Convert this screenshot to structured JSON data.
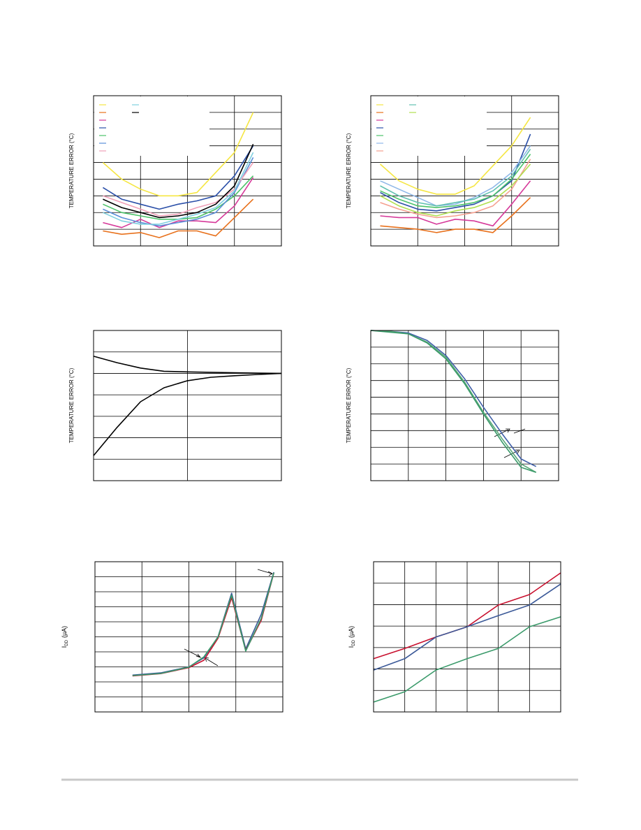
{
  "chart_data": [
    {
      "type": "line",
      "ylabel": "TEMPERATURE ERROR (°C)",
      "legend": "upper left",
      "xlim": [
        0,
        4
      ],
      "xticks": [
        1,
        2,
        3
      ],
      "ylim": [
        0,
        9
      ],
      "yticks": [
        1,
        2,
        3,
        4,
        5,
        6,
        7,
        8
      ],
      "x": [
        0.2,
        0.6,
        1,
        1.4,
        1.8,
        2.2,
        2.6,
        3,
        3.4
      ],
      "series": [
        {
          "color": "#f5e642",
          "values": [
            5.0,
            4.0,
            3.4,
            3.0,
            3.0,
            3.2,
            4.4,
            5.6,
            8.0
          ]
        },
        {
          "color": "#e8711c",
          "values": [
            0.9,
            0.7,
            0.8,
            0.5,
            0.9,
            0.9,
            0.6,
            1.7,
            2.8
          ]
        },
        {
          "color": "#d63a9a",
          "values": [
            1.4,
            1.1,
            1.6,
            1.1,
            1.5,
            1.5,
            1.4,
            2.4,
            4.1
          ]
        },
        {
          "color": "#2a4fa8",
          "values": [
            3.5,
            2.8,
            2.5,
            2.2,
            2.5,
            2.7,
            3.0,
            4.2,
            6.0
          ]
        },
        {
          "color": "#4cc36a",
          "values": [
            2.5,
            2.0,
            1.8,
            1.6,
            1.6,
            1.7,
            2.2,
            3.0,
            4.2
          ]
        },
        {
          "color": "#5b8fd8",
          "values": [
            2.2,
            1.7,
            1.4,
            1.2,
            1.4,
            1.6,
            2.0,
            3.2,
            5.3
          ]
        },
        {
          "color": "#f0a0b8",
          "values": [
            3.0,
            2.6,
            2.2,
            1.8,
            1.9,
            2.3,
            2.6,
            3.4,
            5.0
          ]
        },
        {
          "color": "#7fd0e0",
          "values": [
            2.0,
            1.5,
            1.3,
            1.3,
            1.6,
            1.9,
            2.3,
            3.3,
            5.6
          ]
        },
        {
          "color": "#000000",
          "values": [
            2.8,
            2.3,
            2.0,
            1.7,
            1.8,
            2.0,
            2.5,
            3.6,
            6.1
          ]
        }
      ]
    },
    {
      "type": "line",
      "ylabel": "TEMPERATURE ERROR (°C)",
      "legend": "upper left",
      "xlim": [
        0,
        4
      ],
      "xticks": [
        1,
        2,
        3
      ],
      "ylim": [
        0,
        9
      ],
      "yticks": [
        1,
        2,
        3,
        4,
        5,
        6,
        7,
        8
      ],
      "x": [
        0.2,
        0.6,
        1,
        1.4,
        1.8,
        2.2,
        2.6,
        3,
        3.4
      ],
      "series": [
        {
          "color": "#f5e642",
          "values": [
            4.9,
            3.9,
            3.4,
            3.1,
            3.1,
            3.6,
            4.8,
            6.0,
            7.7
          ]
        },
        {
          "color": "#e8711c",
          "values": [
            1.2,
            1.1,
            1.0,
            0.8,
            1.0,
            1.0,
            0.8,
            1.8,
            2.9
          ]
        },
        {
          "color": "#d63a9a",
          "values": [
            1.8,
            1.7,
            1.7,
            1.3,
            1.6,
            1.5,
            1.2,
            2.5,
            3.9
          ]
        },
        {
          "color": "#2a4fa8",
          "values": [
            3.2,
            2.6,
            2.2,
            2.1,
            2.3,
            2.5,
            3.0,
            3.9,
            6.7
          ]
        },
        {
          "color": "#4cc36a",
          "values": [
            3.3,
            2.8,
            2.4,
            2.3,
            2.4,
            2.6,
            3.0,
            4.0,
            5.5
          ]
        },
        {
          "color": "#8fb8e8",
          "values": [
            3.9,
            3.4,
            2.9,
            2.4,
            2.5,
            2.9,
            3.5,
            4.4,
            6.0
          ]
        },
        {
          "color": "#f5a090",
          "values": [
            2.6,
            2.2,
            1.9,
            1.7,
            1.8,
            2.0,
            2.4,
            3.4,
            5.2
          ]
        },
        {
          "color": "#60c0b0",
          "values": [
            3.6,
            3.0,
            2.6,
            2.4,
            2.6,
            2.8,
            3.3,
            4.2,
            5.8
          ]
        },
        {
          "color": "#b0e050",
          "values": [
            3.0,
            2.4,
            2.0,
            1.8,
            2.1,
            2.3,
            2.7,
            3.6,
            4.9
          ]
        }
      ]
    },
    {
      "type": "line",
      "ylabel": "TEMPERATURE ERROR (°C)",
      "xlim": [
        0,
        2
      ],
      "xticks": [
        1
      ],
      "ylim": [
        0,
        7
      ],
      "yticks": [
        1,
        2,
        3,
        4,
        5,
        6
      ],
      "x": [
        0,
        0.25,
        0.5,
        0.75,
        1,
        1.25,
        1.5,
        1.75,
        2
      ],
      "series": [
        {
          "color": "#000000",
          "values": [
            5.8,
            5.5,
            5.25,
            5.1,
            5.07,
            5.05,
            5.03,
            5.01,
            5.0
          ]
        },
        {
          "color": "#000000",
          "values": [
            1.17,
            2.48,
            3.68,
            4.33,
            4.66,
            4.82,
            4.89,
            4.95,
            5.0
          ]
        }
      ]
    },
    {
      "type": "line",
      "ylabel": "TEMPERATURE ERROR (°C)",
      "xlim": [
        0,
        5
      ],
      "xticks": [
        1,
        2,
        3,
        4
      ],
      "ylim": [
        0,
        9
      ],
      "yticks": [
        1,
        2,
        3,
        4,
        5,
        6,
        7,
        8
      ],
      "x": [
        0,
        0.5,
        1,
        1.5,
        2,
        2.5,
        3,
        3.5,
        4,
        4.4
      ],
      "series": [
        {
          "color": "#3f5fa8",
          "values": [
            9.0,
            8.95,
            8.85,
            8.4,
            7.5,
            6.1,
            4.4,
            2.8,
            1.3,
            0.85
          ]
        },
        {
          "color": "#5aa878",
          "values": [
            9.0,
            8.95,
            8.8,
            8.3,
            7.4,
            5.9,
            4.1,
            2.5,
            1.0,
            0.5
          ]
        },
        {
          "color": "#3a9a6a",
          "values": [
            9.0,
            8.9,
            8.8,
            8.25,
            7.3,
            5.8,
            4.0,
            2.3,
            0.8,
            0.5
          ]
        }
      ]
    },
    {
      "type": "line",
      "ylabel": [
        "I",
        "DD",
        "(µA)"
      ],
      "xlim": [
        0,
        4
      ],
      "xticks": [
        1,
        2,
        3
      ],
      "ylim": [
        0,
        10
      ],
      "yticks": [
        1,
        2,
        3,
        4,
        5,
        6,
        7,
        8,
        9
      ],
      "x": [
        0.8,
        1.4,
        2.0,
        2.32,
        2.62,
        2.91,
        3.21,
        3.54,
        3.81
      ],
      "series": [
        {
          "color": "#3b5998",
          "values": [
            2.45,
            2.6,
            3.0,
            3.6,
            5.0,
            7.9,
            4.2,
            6.5,
            9.3
          ]
        },
        {
          "color": "#c8102e",
          "values": [
            2.4,
            2.55,
            2.95,
            3.44,
            4.9,
            7.6,
            4.1,
            6.1,
            9.25
          ]
        },
        {
          "color": "#3a9a6a",
          "values": [
            2.42,
            2.56,
            2.98,
            3.67,
            4.98,
            7.77,
            4.05,
            6.23,
            9.26
          ]
        }
      ]
    },
    {
      "type": "line",
      "ylabel": [
        "I",
        "DD",
        "(µA)"
      ],
      "xlim": [
        0,
        6
      ],
      "xticks": [
        1,
        2,
        3,
        4,
        5
      ],
      "ylim": [
        0,
        7
      ],
      "yticks": [
        1,
        2,
        3,
        4,
        5,
        6
      ],
      "x": [
        0,
        1,
        2,
        3,
        4,
        5,
        6
      ],
      "series": [
        {
          "color": "#c8102e",
          "values": [
            2.48,
            2.96,
            3.49,
            3.97,
            4.98,
            5.47,
            6.48
          ]
        },
        {
          "color": "#3b5998",
          "values": [
            1.95,
            2.48,
            3.49,
            3.97,
            4.49,
            4.98,
            5.96
          ]
        },
        {
          "color": "#3a9a6a",
          "values": [
            0.46,
            0.94,
            1.95,
            2.48,
            2.96,
            3.97,
            4.43
          ]
        }
      ]
    }
  ]
}
